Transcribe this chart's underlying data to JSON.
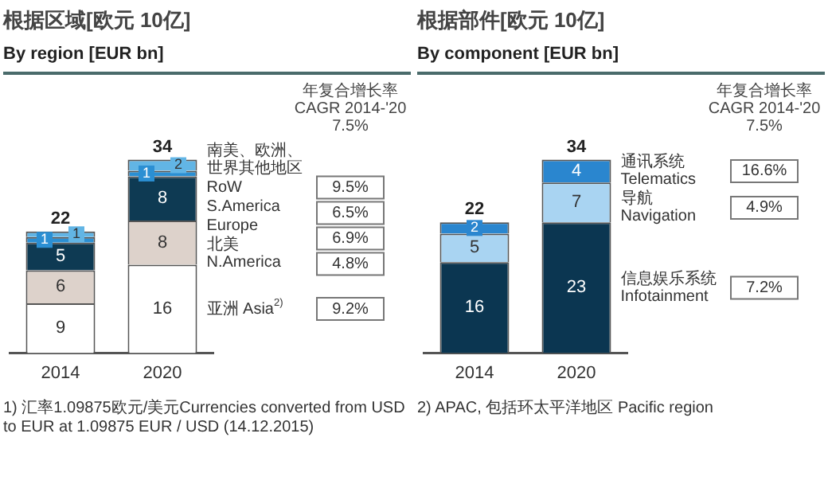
{
  "chart_data": [
    {
      "type": "bar",
      "stacked": true,
      "title": "根据区域[欧元 10亿]",
      "subtitle": "By region [EUR bn]",
      "categories": [
        "2014",
        "2020"
      ],
      "data_labels": true,
      "totals": [
        "22",
        "34"
      ],
      "series": [
        {
          "name": "亚洲 Asia$^{2)}$",
          "color": "#ffffff",
          "values": [
            9,
            16
          ]
        },
        {
          "name": "北美 N.America",
          "color": "#ddd2cb",
          "values": [
            6,
            8
          ]
        },
        {
          "name": "Europe",
          "color": "#0e3a53",
          "values": [
            5,
            8
          ]
        },
        {
          "name": "S.America",
          "color": "#2b8fd3",
          "values": [
            1,
            1
          ]
        },
        {
          "name": "RoW",
          "color": "#62b5e5",
          "values": [
            1,
            2
          ]
        }
      ],
      "annotations": [
        "年复合增长率 CAGR 2014-'20 7.5%",
        {
          "text": "南美、欧洲、世界其他地区",
          "x": "2020",
          "y": 35
        },
        "9.5%",
        "6.5%",
        "6.9%",
        "4.8%",
        "9.2%",
        "1) 汇率1.09875欧元/美元Currencies converted from USD to EUR at 1.09875 EUR / USD (14.12.2015)"
      ]
    },
    {
      "type": "bar",
      "stacked": true,
      "title": "根据部件[欧元 10亿]",
      "subtitle": "By component [EUR bn]",
      "categories": [
        "2014",
        "2020"
      ],
      "data_labels": true,
      "totals": [
        "22",
        "34"
      ],
      "series": [
        {
          "name": "信息娱乐系统 Infotainment",
          "color": "#0b3651",
          "values": [
            16,
            23
          ]
        },
        {
          "name": "导航 Navigation",
          "color": "#a9d4f2",
          "values": [
            5,
            7
          ]
        },
        {
          "name": "通讯系统 Telematics",
          "color": "#2a86cf",
          "values": [
            2,
            4
          ]
        }
      ],
      "annotations": [
        "年复合增长率 CAGR 2014-'20 7.5%",
        "16.6%",
        "4.9%",
        "7.2%",
        "2) APAC, 包括环太平洋地区 Pacific region"
      ]
    }
  ]
}
